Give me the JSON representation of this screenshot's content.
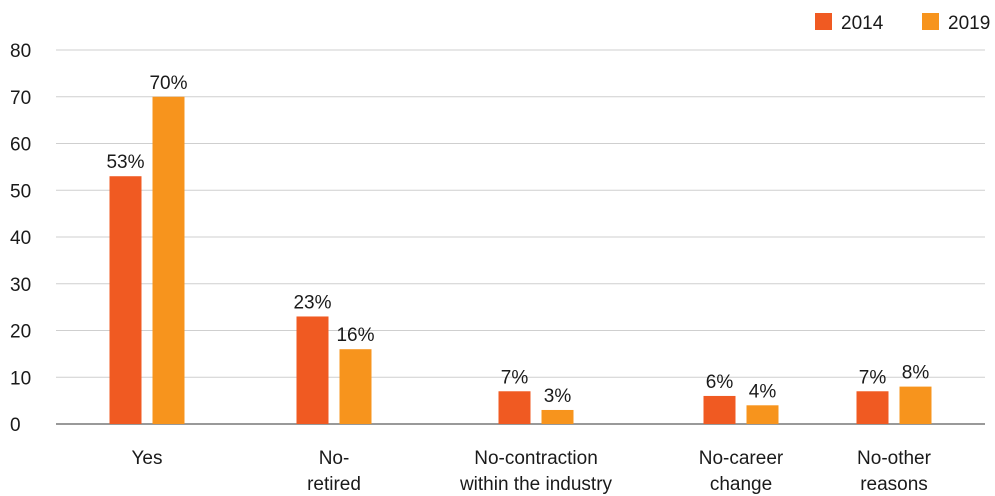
{
  "chart_data": {
    "type": "bar",
    "categories": [
      [
        "Yes"
      ],
      [
        "No-",
        "retired"
      ],
      [
        "No-contraction",
        "within the industry"
      ],
      [
        "No-career",
        "change"
      ],
      [
        "No-other",
        "reasons"
      ]
    ],
    "series": [
      {
        "name": "2014",
        "color": "#f05a22",
        "values": [
          53,
          23,
          7,
          6,
          7
        ],
        "labels": [
          "53%",
          "23%",
          "7%",
          "6%",
          "7%"
        ]
      },
      {
        "name": "2019",
        "color": "#f7941d",
        "values": [
          70,
          16,
          3,
          4,
          8
        ],
        "labels": [
          "70%",
          "16%",
          "3%",
          "4%",
          "8%"
        ]
      }
    ],
    "yticks": [
      0,
      10,
      20,
      30,
      40,
      50,
      60,
      70,
      80
    ],
    "ylim": [
      0,
      80
    ],
    "grid": true,
    "legend": "top-right",
    "title": "",
    "xlabel": "",
    "ylabel": ""
  }
}
